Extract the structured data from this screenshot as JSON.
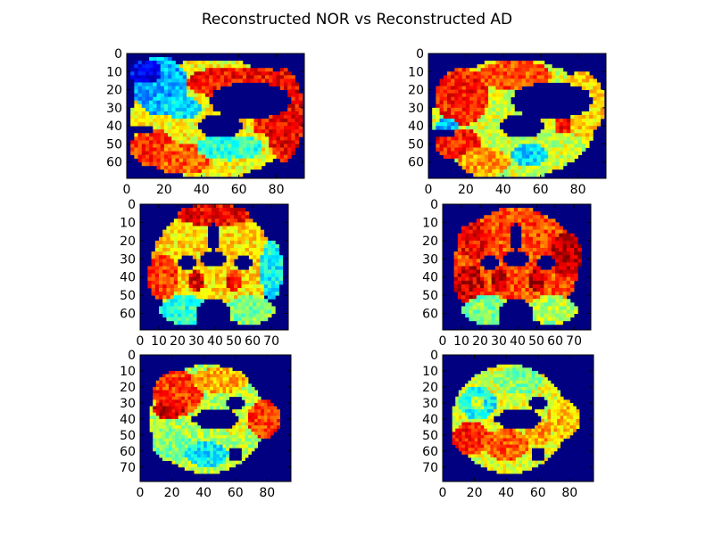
{
  "figure": {
    "title": "Reconstructed NOR vs Reconstructed AD",
    "background": "#ffffff",
    "colormap": "jet"
  },
  "chart_data": [
    {
      "type": "heatmap",
      "view": "sagittal",
      "group": "NOR",
      "xlim": [
        0,
        95
      ],
      "ylim": [
        69,
        0
      ],
      "xticks": [
        0,
        20,
        40,
        60,
        80
      ],
      "yticks": [
        0,
        10,
        20,
        30,
        40,
        50,
        60
      ],
      "regions": [
        {
          "shape": "ellipse",
          "c": [
            46,
            36
          ],
          "r": [
            44,
            33
          ],
          "v": 0.62
        },
        {
          "shape": "ellipse",
          "c": [
            18,
            18
          ],
          "r": [
            15,
            16
          ],
          "v": 0.3
        },
        {
          "shape": "ellipse",
          "c": [
            10,
            10
          ],
          "r": [
            8,
            7
          ],
          "v": 0.12
        },
        {
          "shape": "ellipse",
          "c": [
            60,
            16
          ],
          "r": [
            28,
            9
          ],
          "v": 0.86
        },
        {
          "shape": "ellipse",
          "c": [
            84,
            34
          ],
          "r": [
            10,
            26
          ],
          "v": 0.88
        },
        {
          "shape": "ellipse",
          "c": [
            14,
            52
          ],
          "r": [
            12,
            10
          ],
          "v": 0.82
        },
        {
          "shape": "ellipse",
          "c": [
            30,
            58
          ],
          "r": [
            16,
            9
          ],
          "v": 0.78
        },
        {
          "shape": "ellipse",
          "c": [
            55,
            52
          ],
          "r": [
            18,
            7
          ],
          "v": 0.42
        },
        {
          "shape": "ellipse",
          "c": [
            72,
            40
          ],
          "r": [
            5,
            4
          ],
          "v": 0.86
        },
        {
          "shape": "ellipse",
          "c": [
            30,
            30
          ],
          "r": [
            10,
            6
          ],
          "v": 0.35
        },
        {
          "shape": "ellipse",
          "c": [
            66,
            26
          ],
          "r": [
            22,
            10
          ],
          "v": 0
        },
        {
          "shape": "ellipse",
          "c": [
            50,
            40
          ],
          "r": [
            12,
            7
          ],
          "v": 0
        },
        {
          "shape": "ellipse",
          "c": [
            8,
            42
          ],
          "r": [
            6,
            2
          ],
          "v": 0
        }
      ]
    },
    {
      "type": "heatmap",
      "view": "sagittal",
      "group": "AD",
      "xlim": [
        0,
        95
      ],
      "ylim": [
        69,
        0
      ],
      "xticks": [
        0,
        20,
        40,
        60,
        80
      ],
      "yticks": [
        0,
        10,
        20,
        30,
        40,
        50,
        60
      ],
      "regions": [
        {
          "shape": "ellipse",
          "c": [
            46,
            36
          ],
          "r": [
            44,
            33
          ],
          "v": 0.58
        },
        {
          "shape": "ellipse",
          "c": [
            18,
            24
          ],
          "r": [
            14,
            16
          ],
          "v": 0.85
        },
        {
          "shape": "ellipse",
          "c": [
            46,
            12
          ],
          "r": [
            20,
            8
          ],
          "v": 0.8
        },
        {
          "shape": "ellipse",
          "c": [
            82,
            28
          ],
          "r": [
            12,
            18
          ],
          "v": 0.66
        },
        {
          "shape": "ellipse",
          "c": [
            16,
            50
          ],
          "r": [
            12,
            9
          ],
          "v": 0.86
        },
        {
          "shape": "ellipse",
          "c": [
            30,
            60
          ],
          "r": [
            14,
            8
          ],
          "v": 0.72
        },
        {
          "shape": "ellipse",
          "c": [
            54,
            56
          ],
          "r": [
            10,
            6
          ],
          "v": 0.34
        },
        {
          "shape": "ellipse",
          "c": [
            10,
            40
          ],
          "r": [
            7,
            4
          ],
          "v": 0.3
        },
        {
          "shape": "ellipse",
          "c": [
            72,
            40
          ],
          "r": [
            5,
            4
          ],
          "v": 0.86
        },
        {
          "shape": "ellipse",
          "c": [
            66,
            26
          ],
          "r": [
            22,
            10
          ],
          "v": 0
        },
        {
          "shape": "ellipse",
          "c": [
            50,
            40
          ],
          "r": [
            12,
            7
          ],
          "v": 0
        },
        {
          "shape": "ellipse",
          "c": [
            8,
            44
          ],
          "r": [
            6,
            2
          ],
          "v": 0
        }
      ]
    },
    {
      "type": "heatmap",
      "view": "coronal",
      "group": "NOR",
      "xlim": [
        0,
        79
      ],
      "ylim": [
        69,
        0
      ],
      "xticks": [
        0,
        10,
        20,
        30,
        40,
        50,
        60,
        70
      ],
      "yticks": [
        0,
        10,
        20,
        30,
        40,
        50,
        60
      ],
      "regions": [
        {
          "shape": "ellipse",
          "c": [
            39,
            34
          ],
          "r": [
            33,
            32
          ],
          "v": 0.66
        },
        {
          "shape": "ellipse",
          "c": [
            39,
            6
          ],
          "r": [
            20,
            6
          ],
          "v": 0.88
        },
        {
          "shape": "ellipse",
          "c": [
            70,
            36
          ],
          "r": [
            6,
            16
          ],
          "v": 0.38
        },
        {
          "shape": "ellipse",
          "c": [
            12,
            40
          ],
          "r": [
            8,
            12
          ],
          "v": 0.82
        },
        {
          "shape": "ellipse",
          "c": [
            24,
            58
          ],
          "r": [
            14,
            8
          ],
          "v": 0.42
        },
        {
          "shape": "ellipse",
          "c": [
            58,
            58
          ],
          "r": [
            14,
            8
          ],
          "v": 0.5
        },
        {
          "shape": "ellipse",
          "c": [
            30,
            42
          ],
          "r": [
            5,
            6
          ],
          "v": 0.9
        },
        {
          "shape": "ellipse",
          "c": [
            50,
            42
          ],
          "r": [
            5,
            6
          ],
          "v": 0.86
        },
        {
          "shape": "ellipse",
          "c": [
            39,
            30
          ],
          "r": [
            8,
            4
          ],
          "v": 0
        },
        {
          "shape": "ellipse",
          "c": [
            25,
            32
          ],
          "r": [
            6,
            4
          ],
          "v": 0
        },
        {
          "shape": "ellipse",
          "c": [
            55,
            32
          ],
          "r": [
            6,
            4
          ],
          "v": 0
        },
        {
          "shape": "ellipse",
          "c": [
            39,
            62
          ],
          "r": [
            10,
            10
          ],
          "v": 0
        },
        {
          "shape": "ellipse",
          "c": [
            39,
            18
          ],
          "r": [
            3,
            8
          ],
          "v": 0
        }
      ]
    },
    {
      "type": "heatmap",
      "view": "coronal",
      "group": "AD",
      "xlim": [
        0,
        79
      ],
      "ylim": [
        69,
        0
      ],
      "xticks": [
        0,
        10,
        20,
        30,
        40,
        50,
        60,
        70
      ],
      "yticks": [
        0,
        10,
        20,
        30,
        40,
        50,
        60
      ],
      "regions": [
        {
          "shape": "ellipse",
          "c": [
            39,
            34
          ],
          "r": [
            33,
            32
          ],
          "v": 0.8
        },
        {
          "shape": "ellipse",
          "c": [
            18,
            20
          ],
          "r": [
            10,
            10
          ],
          "v": 0.88
        },
        {
          "shape": "ellipse",
          "c": [
            66,
            28
          ],
          "r": [
            8,
            12
          ],
          "v": 0.95
        },
        {
          "shape": "ellipse",
          "c": [
            14,
            44
          ],
          "r": [
            8,
            10
          ],
          "v": 0.92
        },
        {
          "shape": "ellipse",
          "c": [
            24,
            58
          ],
          "r": [
            14,
            8
          ],
          "v": 0.5
        },
        {
          "shape": "ellipse",
          "c": [
            58,
            58
          ],
          "r": [
            14,
            8
          ],
          "v": 0.55
        },
        {
          "shape": "ellipse",
          "c": [
            30,
            42
          ],
          "r": [
            5,
            6
          ],
          "v": 0.95
        },
        {
          "shape": "ellipse",
          "c": [
            50,
            42
          ],
          "r": [
            5,
            6
          ],
          "v": 0.95
        },
        {
          "shape": "ellipse",
          "c": [
            39,
            30
          ],
          "r": [
            8,
            4
          ],
          "v": 0
        },
        {
          "shape": "ellipse",
          "c": [
            25,
            32
          ],
          "r": [
            6,
            4
          ],
          "v": 0
        },
        {
          "shape": "ellipse",
          "c": [
            55,
            32
          ],
          "r": [
            6,
            4
          ],
          "v": 0
        },
        {
          "shape": "ellipse",
          "c": [
            39,
            62
          ],
          "r": [
            10,
            10
          ],
          "v": 0
        },
        {
          "shape": "ellipse",
          "c": [
            39,
            18
          ],
          "r": [
            3,
            8
          ],
          "v": 0
        }
      ]
    },
    {
      "type": "heatmap",
      "view": "axial",
      "group": "NOR",
      "xlim": [
        0,
        95
      ],
      "ylim": [
        79,
        0
      ],
      "xticks": [
        0,
        20,
        40,
        60,
        80
      ],
      "yticks": [
        0,
        10,
        20,
        30,
        40,
        50,
        60,
        70
      ],
      "regions": [
        {
          "shape": "ellipse",
          "c": [
            42,
            40
          ],
          "r": [
            36,
            34
          ],
          "v": 0.55
        },
        {
          "shape": "ellipse",
          "c": [
            78,
            40
          ],
          "r": [
            10,
            12
          ],
          "v": 0.82
        },
        {
          "shape": "ellipse",
          "c": [
            24,
            24
          ],
          "r": [
            16,
            14
          ],
          "v": 0.82
        },
        {
          "shape": "ellipse",
          "c": [
            18,
            34
          ],
          "r": [
            10,
            6
          ],
          "v": 0.92
        },
        {
          "shape": "ellipse",
          "c": [
            50,
            16
          ],
          "r": [
            18,
            8
          ],
          "v": 0.7
        },
        {
          "shape": "ellipse",
          "c": [
            20,
            56
          ],
          "r": [
            12,
            10
          ],
          "v": 0.5
        },
        {
          "shape": "ellipse",
          "c": [
            42,
            62
          ],
          "r": [
            14,
            8
          ],
          "v": 0.36
        },
        {
          "shape": "ellipse",
          "c": [
            60,
            40
          ],
          "r": [
            8,
            10
          ],
          "v": 0.6
        },
        {
          "shape": "ellipse",
          "c": [
            48,
            40
          ],
          "r": [
            14,
            7
          ],
          "v": 0
        },
        {
          "shape": "ellipse",
          "c": [
            60,
            30
          ],
          "r": [
            6,
            4
          ],
          "v": 0
        },
        {
          "shape": "ellipse",
          "c": [
            60,
            62
          ],
          "r": [
            5,
            4
          ],
          "v": 0
        },
        {
          "shape": "ellipse",
          "c": [
            34,
            40
          ],
          "r": [
            3,
            3
          ],
          "v": 0
        }
      ]
    },
    {
      "type": "heatmap",
      "view": "axial",
      "group": "AD",
      "xlim": [
        0,
        95
      ],
      "ylim": [
        79,
        0
      ],
      "xticks": [
        0,
        20,
        40,
        60,
        80
      ],
      "yticks": [
        0,
        10,
        20,
        30,
        40,
        50,
        60,
        70
      ],
      "regions": [
        {
          "shape": "ellipse",
          "c": [
            42,
            40
          ],
          "r": [
            36,
            34
          ],
          "v": 0.6
        },
        {
          "shape": "ellipse",
          "c": [
            76,
            40
          ],
          "r": [
            10,
            12
          ],
          "v": 0.68
        },
        {
          "shape": "ellipse",
          "c": [
            22,
            30
          ],
          "r": [
            12,
            10
          ],
          "v": 0.38
        },
        {
          "shape": "ellipse",
          "c": [
            22,
            30
          ],
          "r": [
            5,
            5
          ],
          "v": 0.55
        },
        {
          "shape": "ellipse",
          "c": [
            18,
            52
          ],
          "r": [
            12,
            10
          ],
          "v": 0.85
        },
        {
          "shape": "ellipse",
          "c": [
            40,
            56
          ],
          "r": [
            14,
            10
          ],
          "v": 0.78
        },
        {
          "shape": "ellipse",
          "c": [
            48,
            16
          ],
          "r": [
            16,
            8
          ],
          "v": 0.5
        },
        {
          "shape": "ellipse",
          "c": [
            60,
            48
          ],
          "r": [
            8,
            8
          ],
          "v": 0.72
        },
        {
          "shape": "ellipse",
          "c": [
            48,
            40
          ],
          "r": [
            14,
            7
          ],
          "v": 0
        },
        {
          "shape": "ellipse",
          "c": [
            60,
            30
          ],
          "r": [
            6,
            4
          ],
          "v": 0
        },
        {
          "shape": "ellipse",
          "c": [
            60,
            62
          ],
          "r": [
            5,
            4
          ],
          "v": 0
        },
        {
          "shape": "ellipse",
          "c": [
            34,
            40
          ],
          "r": [
            3,
            3
          ],
          "v": 0
        }
      ]
    }
  ]
}
